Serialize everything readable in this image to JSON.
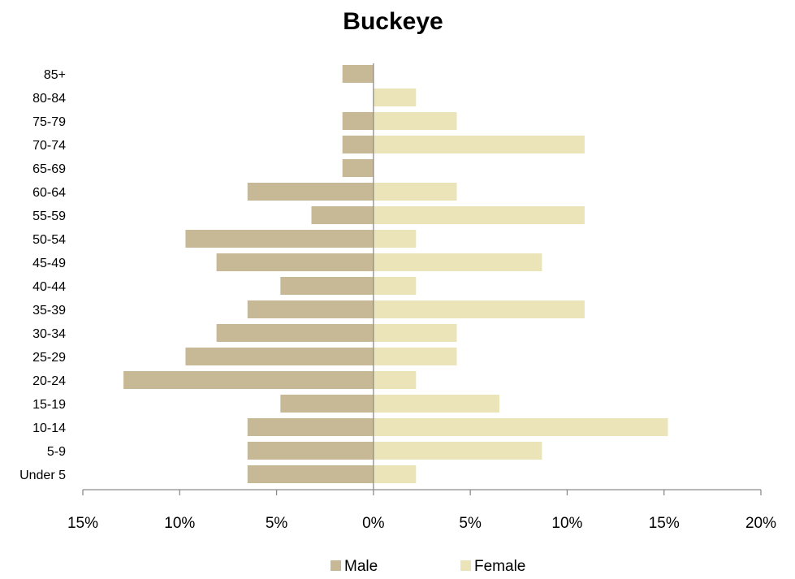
{
  "chart_data": {
    "type": "bar",
    "orientation": "horizontal",
    "title": "Buckeye",
    "categories": [
      "Under 5",
      "5-9",
      "10-14",
      "15-19",
      "20-24",
      "25-29",
      "30-34",
      "35-39",
      "40-44",
      "45-49",
      "50-54",
      "55-59",
      "60-64",
      "65-69",
      "70-74",
      "75-79",
      "80-84",
      "85+"
    ],
    "series": [
      {
        "name": "Male",
        "color": "#c7b995",
        "values": [
          -6.5,
          -6.5,
          -6.5,
          -4.8,
          -12.9,
          -9.7,
          -8.1,
          -6.5,
          -4.8,
          -8.1,
          -9.7,
          -3.2,
          -6.5,
          -1.6,
          -1.6,
          -1.6,
          0,
          -1.6
        ]
      },
      {
        "name": "Female",
        "color": "#ebe4b8",
        "values": [
          2.2,
          8.7,
          15.2,
          6.5,
          2.2,
          4.3,
          4.3,
          10.9,
          2.2,
          8.7,
          2.2,
          10.9,
          4.3,
          0,
          10.9,
          4.3,
          2.2,
          0
        ]
      }
    ],
    "xlim": [
      -15,
      20
    ],
    "xticks": [
      -15,
      -10,
      -5,
      0,
      5,
      10,
      15,
      20
    ],
    "xtick_labels": [
      "15%",
      "10%",
      "5%",
      "0%",
      "5%",
      "10%",
      "15%",
      "20%"
    ],
    "grid": false,
    "legend_position": "bottom"
  }
}
